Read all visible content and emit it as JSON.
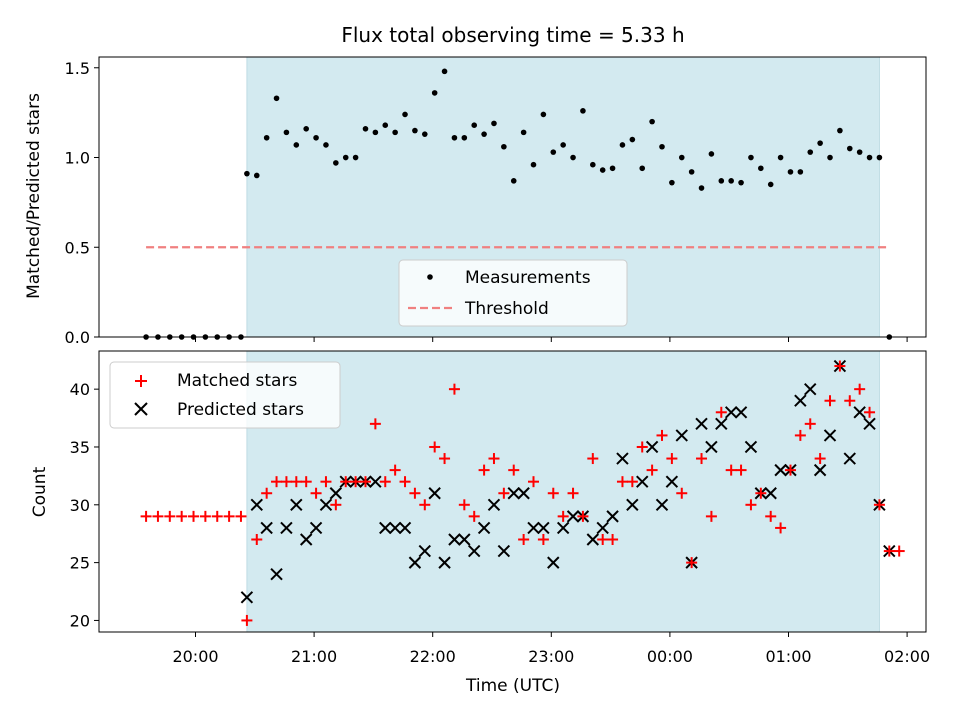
{
  "chart_data": [
    {
      "type": "scatter",
      "title": "Flux total observing time = 5.33 h",
      "ylabel": "Matched/Predicted stars",
      "xlabel": "",
      "ylim": [
        0,
        1.56
      ],
      "yticks": [
        0.0,
        0.5,
        1.0,
        1.5
      ],
      "ytick_labels": [
        "0.0",
        "0.5",
        "1.0",
        "1.5"
      ],
      "grid": false,
      "legend_position": "bottom-center",
      "shaded_interval": {
        "start": "20:26",
        "end": "01:46",
        "color": "#d3eaf0"
      },
      "series": [
        {
          "name": "Measurements",
          "marker": "dot",
          "color": "#000000",
          "points": [
            [
              "19:35",
              0.0
            ],
            [
              "19:41",
              0.0
            ],
            [
              "19:47",
              0.0
            ],
            [
              "19:53",
              0.0
            ],
            [
              "19:59",
              0.0
            ],
            [
              "20:05",
              0.0
            ],
            [
              "20:11",
              0.0
            ],
            [
              "20:17",
              0.0
            ],
            [
              "20:23",
              0.0
            ],
            [
              "20:26",
              0.91
            ],
            [
              "20:31",
              0.9
            ],
            [
              "20:36",
              1.11
            ],
            [
              "20:41",
              1.33
            ],
            [
              "20:46",
              1.14
            ],
            [
              "20:51",
              1.07
            ],
            [
              "20:56",
              1.16
            ],
            [
              "21:01",
              1.11
            ],
            [
              "21:06",
              1.07
            ],
            [
              "21:11",
              0.97
            ],
            [
              "21:16",
              1.0
            ],
            [
              "21:21",
              1.0
            ],
            [
              "21:26",
              1.16
            ],
            [
              "21:31",
              1.14
            ],
            [
              "21:36",
              1.18
            ],
            [
              "21:41",
              1.14
            ],
            [
              "21:46",
              1.24
            ],
            [
              "21:51",
              1.15
            ],
            [
              "21:56",
              1.13
            ],
            [
              "22:01",
              1.36
            ],
            [
              "22:06",
              1.48
            ],
            [
              "22:11",
              1.11
            ],
            [
              "22:16",
              1.11
            ],
            [
              "22:21",
              1.18
            ],
            [
              "22:26",
              1.13
            ],
            [
              "22:31",
              1.19
            ],
            [
              "22:36",
              1.06
            ],
            [
              "22:41",
              0.87
            ],
            [
              "22:46",
              1.14
            ],
            [
              "22:51",
              0.96
            ],
            [
              "22:56",
              1.24
            ],
            [
              "23:01",
              1.03
            ],
            [
              "23:06",
              1.07
            ],
            [
              "23:11",
              1.0
            ],
            [
              "23:16",
              1.26
            ],
            [
              "23:21",
              0.96
            ],
            [
              "23:26",
              0.93
            ],
            [
              "23:31",
              0.94
            ],
            [
              "23:36",
              1.07
            ],
            [
              "23:41",
              1.1
            ],
            [
              "23:46",
              0.94
            ],
            [
              "23:51",
              1.2
            ],
            [
              "23:56",
              1.06
            ],
            [
              "00:01",
              0.86
            ],
            [
              "00:06",
              1.0
            ],
            [
              "00:11",
              0.92
            ],
            [
              "00:16",
              0.83
            ],
            [
              "00:21",
              1.02
            ],
            [
              "00:26",
              0.87
            ],
            [
              "00:31",
              0.87
            ],
            [
              "00:36",
              0.86
            ],
            [
              "00:41",
              1.0
            ],
            [
              "00:46",
              0.94
            ],
            [
              "00:51",
              0.85
            ],
            [
              "00:56",
              1.0
            ],
            [
              "01:01",
              0.92
            ],
            [
              "01:06",
              0.92
            ],
            [
              "01:11",
              1.03
            ],
            [
              "01:16",
              1.08
            ],
            [
              "01:21",
              1.0
            ],
            [
              "01:26",
              1.15
            ],
            [
              "01:31",
              1.05
            ],
            [
              "01:36",
              1.03
            ],
            [
              "01:41",
              1.0
            ],
            [
              "01:46",
              1.0
            ],
            [
              "01:51",
              0.0
            ]
          ]
        },
        {
          "name": "Threshold",
          "marker": "dashed-line",
          "color": "#f08080",
          "points": [
            [
              "19:35",
              0.5
            ],
            [
              "01:51",
              0.5
            ]
          ]
        }
      ]
    },
    {
      "type": "scatter",
      "title": "",
      "ylabel": "Count",
      "xlabel": "Time (UTC)",
      "ylim": [
        19,
        43.3
      ],
      "yticks": [
        20,
        25,
        30,
        35,
        40
      ],
      "ytick_labels": [
        "20",
        "25",
        "30",
        "35",
        "40"
      ],
      "xticks": [
        "20:00",
        "21:00",
        "22:00",
        "23:00",
        "00:00",
        "01:00",
        "02:00"
      ],
      "grid": false,
      "legend_position": "top-left",
      "shaded_interval": {
        "start": "20:26",
        "end": "01:46",
        "color": "#d3eaf0"
      },
      "series": [
        {
          "name": "Matched stars",
          "marker": "plus",
          "color": "#ff0000",
          "points": [
            [
              "19:35",
              29
            ],
            [
              "19:41",
              29
            ],
            [
              "19:47",
              29
            ],
            [
              "19:53",
              29
            ],
            [
              "19:59",
              29
            ],
            [
              "20:05",
              29
            ],
            [
              "20:11",
              29
            ],
            [
              "20:17",
              29
            ],
            [
              "20:23",
              29
            ],
            [
              "20:26",
              20
            ],
            [
              "20:31",
              27
            ],
            [
              "20:36",
              31
            ],
            [
              "20:41",
              32
            ],
            [
              "20:46",
              32
            ],
            [
              "20:51",
              32
            ],
            [
              "20:56",
              32
            ],
            [
              "21:01",
              31
            ],
            [
              "21:06",
              32
            ],
            [
              "21:11",
              30
            ],
            [
              "21:16",
              32
            ],
            [
              "21:21",
              32
            ],
            [
              "21:26",
              32
            ],
            [
              "21:31",
              37
            ],
            [
              "21:36",
              32
            ],
            [
              "21:41",
              33
            ],
            [
              "21:46",
              32
            ],
            [
              "21:51",
              31
            ],
            [
              "21:56",
              30
            ],
            [
              "22:01",
              35
            ],
            [
              "22:06",
              34
            ],
            [
              "22:11",
              40
            ],
            [
              "22:16",
              30
            ],
            [
              "22:21",
              29
            ],
            [
              "22:26",
              33
            ],
            [
              "22:31",
              34
            ],
            [
              "22:36",
              31
            ],
            [
              "22:41",
              33
            ],
            [
              "22:46",
              27
            ],
            [
              "22:51",
              32
            ],
            [
              "22:56",
              27
            ],
            [
              "23:01",
              31
            ],
            [
              "23:06",
              29
            ],
            [
              "23:11",
              31
            ],
            [
              "23:16",
              29
            ],
            [
              "23:21",
              34
            ],
            [
              "23:26",
              27
            ],
            [
              "23:31",
              27
            ],
            [
              "23:36",
              32
            ],
            [
              "23:41",
              32
            ],
            [
              "23:46",
              35
            ],
            [
              "23:51",
              33
            ],
            [
              "23:56",
              36
            ],
            [
              "00:01",
              34
            ],
            [
              "00:06",
              31
            ],
            [
              "00:11",
              25
            ],
            [
              "00:16",
              34
            ],
            [
              "00:21",
              29
            ],
            [
              "00:26",
              38
            ],
            [
              "00:31",
              33
            ],
            [
              "00:36",
              33
            ],
            [
              "00:41",
              30
            ],
            [
              "00:46",
              31
            ],
            [
              "00:51",
              29
            ],
            [
              "00:56",
              28
            ],
            [
              "01:01",
              33
            ],
            [
              "01:06",
              36
            ],
            [
              "01:11",
              37
            ],
            [
              "01:16",
              34
            ],
            [
              "01:21",
              39
            ],
            [
              "01:26",
              42
            ],
            [
              "01:31",
              39
            ],
            [
              "01:36",
              40
            ],
            [
              "01:41",
              38
            ],
            [
              "01:46",
              30
            ],
            [
              "01:51",
              26
            ],
            [
              "01:56",
              26
            ]
          ]
        },
        {
          "name": "Predicted stars",
          "marker": "x",
          "color": "#000000",
          "points": [
            [
              "20:26",
              22
            ],
            [
              "20:31",
              30
            ],
            [
              "20:36",
              28
            ],
            [
              "20:41",
              24
            ],
            [
              "20:46",
              28
            ],
            [
              "20:51",
              30
            ],
            [
              "20:56",
              27
            ],
            [
              "21:01",
              28
            ],
            [
              "21:06",
              30
            ],
            [
              "21:11",
              31
            ],
            [
              "21:16",
              32
            ],
            [
              "21:21",
              32
            ],
            [
              "21:26",
              32
            ],
            [
              "21:31",
              32
            ],
            [
              "21:36",
              28
            ],
            [
              "21:41",
              28
            ],
            [
              "21:46",
              28
            ],
            [
              "21:51",
              25
            ],
            [
              "21:56",
              26
            ],
            [
              "22:01",
              31
            ],
            [
              "22:06",
              25
            ],
            [
              "22:11",
              27
            ],
            [
              "22:16",
              27
            ],
            [
              "22:21",
              26
            ],
            [
              "22:26",
              28
            ],
            [
              "22:31",
              30
            ],
            [
              "22:36",
              26
            ],
            [
              "22:41",
              31
            ],
            [
              "22:46",
              31
            ],
            [
              "22:51",
              28
            ],
            [
              "22:56",
              28
            ],
            [
              "23:01",
              25
            ],
            [
              "23:06",
              28
            ],
            [
              "23:11",
              29
            ],
            [
              "23:16",
              29
            ],
            [
              "23:21",
              27
            ],
            [
              "23:26",
              28
            ],
            [
              "23:31",
              29
            ],
            [
              "23:36",
              34
            ],
            [
              "23:41",
              30
            ],
            [
              "23:46",
              32
            ],
            [
              "23:51",
              35
            ],
            [
              "23:56",
              30
            ],
            [
              "00:01",
              32
            ],
            [
              "00:06",
              36
            ],
            [
              "00:11",
              25
            ],
            [
              "00:16",
              37
            ],
            [
              "00:21",
              35
            ],
            [
              "00:26",
              37
            ],
            [
              "00:31",
              38
            ],
            [
              "00:36",
              38
            ],
            [
              "00:41",
              35
            ],
            [
              "00:46",
              31
            ],
            [
              "00:51",
              31
            ],
            [
              "00:56",
              33
            ],
            [
              "01:01",
              33
            ],
            [
              "01:06",
              39
            ],
            [
              "01:11",
              40
            ],
            [
              "01:16",
              33
            ],
            [
              "01:21",
              36
            ],
            [
              "01:26",
              42
            ],
            [
              "01:31",
              34
            ],
            [
              "01:36",
              38
            ],
            [
              "01:41",
              37
            ],
            [
              "01:46",
              30
            ],
            [
              "01:51",
              26
            ]
          ]
        }
      ]
    }
  ]
}
